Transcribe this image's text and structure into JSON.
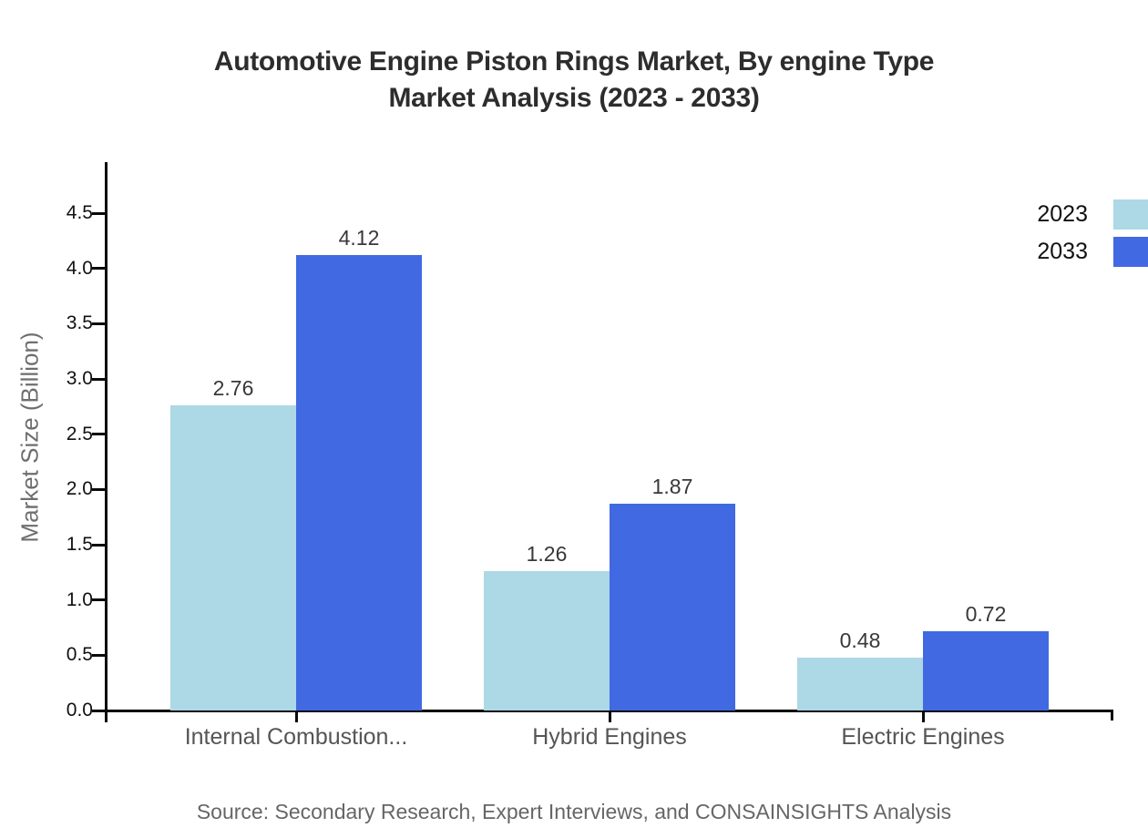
{
  "title": {
    "line1": "Automotive Engine Piston Rings Market, By engine Type",
    "line2": "Market Analysis (2023 - 2033)"
  },
  "source": "Source: Secondary Research, Expert Interviews, and CONSAINSIGHTS Analysis",
  "chart_data": {
    "type": "bar",
    "title": "Automotive Engine Piston Rings Market, By engine Type Market Analysis (2023 - 2033)",
    "categories": [
      "Internal Combustion...",
      "Hybrid Engines",
      "Electric Engines"
    ],
    "series": [
      {
        "name": "2023",
        "color": "#ADD8E6",
        "values": [
          2.76,
          1.26,
          0.48
        ]
      },
      {
        "name": "2033",
        "color": "#4169E1",
        "values": [
          4.12,
          1.87,
          0.72
        ]
      }
    ],
    "xlabel": "",
    "ylabel": "Market Size (Billion)",
    "yticks": [
      0.0,
      0.5,
      1.0,
      1.5,
      2.0,
      2.5,
      3.0,
      3.5,
      4.0,
      4.5
    ],
    "ylim": [
      0,
      5
    ],
    "grid": false,
    "value_labels_shown": true,
    "legend_position": "top-right"
  }
}
